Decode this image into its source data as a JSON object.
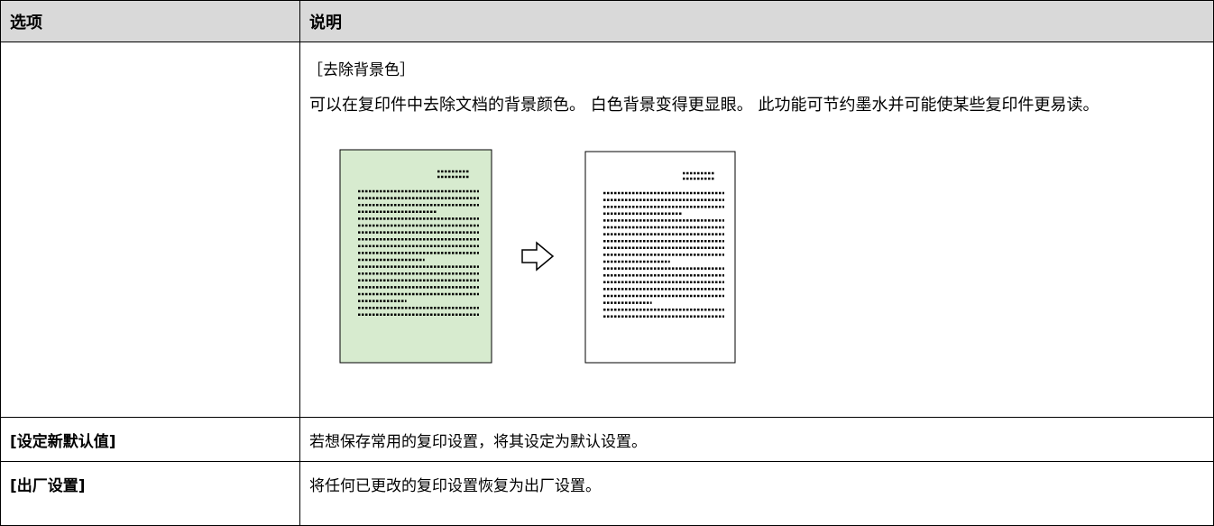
{
  "table": {
    "header": [
      "选项",
      "说明"
    ],
    "rows": [
      {
        "description_heading": "［去除背景色］",
        "description": "可以在复印件中去除文档的背景颜色。 白色背景变得更显眼。 此功能可节约墨水并可能使某些复印件更易读。"
      },
      {
        "option": "[设定新默认值]",
        "description": "若想保存常用的复印设置，将其设定为默认设置。"
      },
      {
        "option": "[出厂设置]",
        "description": "将任何已更改的复印设置恢复为出厂设置。"
      }
    ]
  }
}
